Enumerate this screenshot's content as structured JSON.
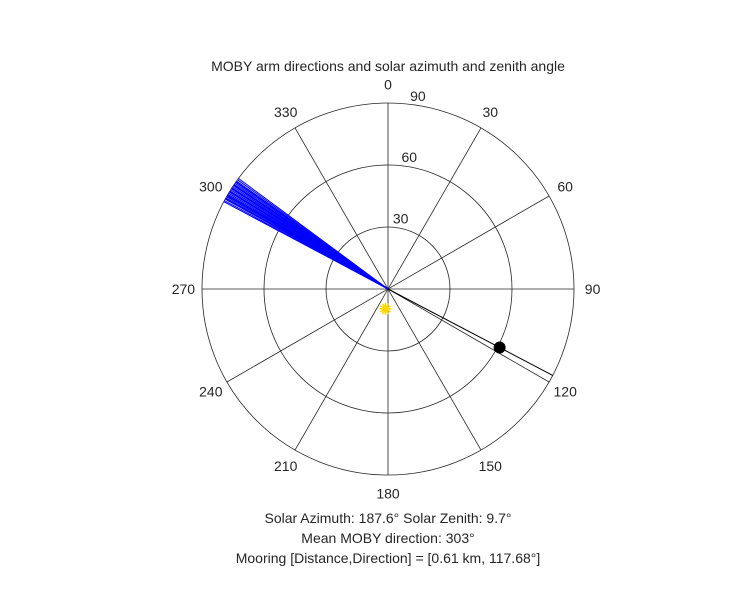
{
  "chart_data": {
    "type": "polar",
    "title": "MOBY arm directions and solar azimuth and zenith angle",
    "angle_axis": {
      "zero_location": "top",
      "direction": "clockwise",
      "ticks": [
        0,
        30,
        60,
        90,
        120,
        150,
        180,
        210,
        240,
        270,
        300,
        330
      ],
      "tick_labels": [
        "0",
        "30",
        "60",
        "90",
        "120",
        "150",
        "180",
        "210",
        "240",
        "270",
        "300",
        "330"
      ]
    },
    "radial_axis": {
      "range": [
        0,
        90
      ],
      "ticks": [
        30,
        60,
        90
      ],
      "tick_labels": [
        "30",
        "60",
        "90"
      ]
    },
    "grid": true,
    "series": [
      {
        "type": "lines",
        "marker_color": "#0000ff",
        "angles_deg": [
          298.0,
          298.4,
          298.9,
          299.3,
          299.7,
          300.1,
          300.6,
          301.0,
          301.4,
          301.8,
          302.2,
          302.6,
          303.0,
          303.4,
          303.8,
          304.2,
          304.6,
          305.0,
          305.5,
          306.0,
          306.5,
          299.1,
          300.3,
          301.6,
          302.8,
          304.0,
          305.2
        ],
        "radius": 90
      },
      {
        "type": "point",
        "marker": "sun",
        "marker_color": "#ffd700",
        "angle_deg": 187.6,
        "radius": 9.7
      },
      {
        "type": "point",
        "marker": "filled-circle",
        "marker_color": "#000000",
        "angle_deg": 117.68,
        "radius": 61
      },
      {
        "type": "line",
        "marker_color": "#000000",
        "angles_deg": [
          117.68,
          117.68
        ],
        "radii": [
          0,
          90
        ]
      }
    ],
    "captions": [
      "Solar Azimuth: 187.6°   Solar Zenith: 9.7°",
      "Mean MOBY direction: 303°",
      "Mooring [Distance,Direction] = [0.61 km, 117.68°]"
    ]
  }
}
